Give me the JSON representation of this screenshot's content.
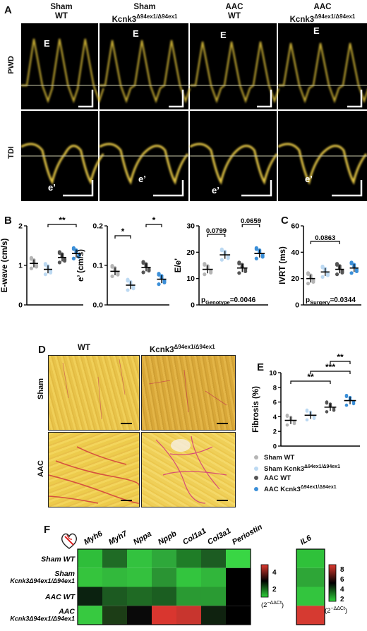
{
  "panelA": {
    "letter": "A",
    "columns": [
      {
        "line1": "Sham",
        "line2": "WT",
        "sup": ""
      },
      {
        "line1": "Sham",
        "line2": "Kcnk3",
        "sup": "Δ94ex1/Δ94ex1"
      },
      {
        "line1": "AAC",
        "line2": "WT",
        "sup": ""
      },
      {
        "line1": "AAC",
        "line2": "Kcnk3",
        "sup": "Δ94ex1/Δ94ex1"
      }
    ],
    "rows": [
      "PWD",
      "TDI"
    ],
    "pwd_marker": "E",
    "tdi_marker": "e’"
  },
  "panelB": {
    "letter": "B",
    "charts": [
      {
        "ylabel": "E-wave (cm/s)",
        "ylim": [
          0,
          2
        ],
        "yticks": [
          "0",
          "1",
          "2"
        ],
        "means": [
          1.05,
          0.9,
          1.2,
          1.3
        ],
        "sig": [
          {
            "from": 2,
            "to": 4,
            "label": "**"
          }
        ]
      },
      {
        "ylabel": "e’ (cm/s)",
        "ylim": [
          0,
          0.2
        ],
        "yticks": [
          "0.0",
          "0.1",
          "0.2"
        ],
        "means": [
          0.085,
          0.05,
          0.095,
          0.065
        ],
        "sig": [
          {
            "from": 1,
            "to": 2,
            "label": "*"
          },
          {
            "from": 3,
            "to": 4,
            "label": "*"
          }
        ]
      },
      {
        "ylabel": "E/e’",
        "ylim": [
          0,
          30
        ],
        "yticks": [
          "0",
          "10",
          "20",
          "30"
        ],
        "means": [
          13.5,
          19,
          14,
          19.5
        ],
        "sig": [
          {
            "from": 1,
            "to": 2,
            "label": "0.0799"
          },
          {
            "from": 3,
            "to": 4,
            "label": "0.0659"
          }
        ],
        "p_text_main": "p",
        "p_text_sub": "Genotype",
        "p_text_val": "=0.0046"
      }
    ]
  },
  "panelC": {
    "letter": "C",
    "ylabel": "IVRT (ms)",
    "ylim": [
      0,
      60
    ],
    "yticks": [
      "0",
      "20",
      "40",
      "60"
    ],
    "means": [
      20,
      25,
      27,
      28
    ],
    "sig": [
      {
        "from": 1,
        "to": 3,
        "label": "0.0863"
      }
    ],
    "p_text_main": "p",
    "p_text_sub": "Surgery",
    "p_text_val": "=0.0344"
  },
  "panelD": {
    "letter": "D",
    "col_wt": "WT",
    "col_ko": "Kcnk3",
    "col_ko_sup": "Δ94ex1/Δ94ex1",
    "row_sham": "Sham",
    "row_aac": "AAC"
  },
  "panelE": {
    "letter": "E",
    "ylabel": "Fibrosis (%)",
    "ylim": [
      0,
      10
    ],
    "yticks": [
      "0",
      "2",
      "4",
      "6",
      "8",
      "10"
    ],
    "means": [
      3.5,
      4.2,
      5.3,
      6.2
    ],
    "sig": [
      {
        "from": 1,
        "to": 3,
        "label": "**"
      },
      {
        "from": 2,
        "to": 4,
        "label": "***"
      },
      {
        "from": 3,
        "to": 4,
        "label": "**"
      }
    ],
    "legend": [
      {
        "text": "Sham WT",
        "sup": "",
        "color": "#b5b5b5"
      },
      {
        "text": "Sham Kcnk3",
        "sup": "Δ94ex1/Δ94ex1",
        "color": "#bcd9f2"
      },
      {
        "text": "AAC WT",
        "sup": "",
        "color": "#555555"
      },
      {
        "text": "AAC Kcnk3",
        "sup": "Δ94ex1/Δ94ex1",
        "color": "#3b8fd8"
      }
    ]
  },
  "panelF": {
    "letter": "F",
    "genes": [
      "Myh6",
      "Myh7",
      "Nppa",
      "Nppb",
      "Col1a1",
      "Col3a1",
      "Periostin"
    ],
    "gene2": [
      "IL6"
    ],
    "rows": [
      {
        "main": "Sham WT",
        "sub": ""
      },
      {
        "main": "Sham",
        "sub": "Kcnk3Δ94ex1/Δ94ex1"
      },
      {
        "main": "AAC WT",
        "sub": ""
      },
      {
        "main": "AAC",
        "sub": "Kcnk3Δ94ex1/Δ94ex1"
      }
    ],
    "heat": [
      [
        "#2fbe3a",
        "#1f6b25",
        "#33c23f",
        "#2ea83a",
        "#1f7d27",
        "#1c5c22",
        "#39d644"
      ],
      [
        "#35c43d",
        "#32b93c",
        "#34c13e",
        "#2a9433",
        "#33c53e",
        "#31b63b",
        "#000000"
      ],
      [
        "#0b2210",
        "#1c5a21",
        "#1f6a24",
        "#1b5e21",
        "#2a9a33",
        "#2a9b33",
        "#000000"
      ],
      [
        "#37c940",
        "#1c3d16",
        "#090909",
        "#d9362f",
        "#c8352e",
        "#0f220f",
        "#000000"
      ]
    ],
    "heat2": [
      "#2fc13a",
      "#2ea637",
      "#33c53e",
      "#d63a31"
    ],
    "scale1_ticks": [
      "4",
      "2"
    ],
    "scale1_label": "(2",
    "scale1_sup": "−ΔΔCt",
    "scale1_close": ")",
    "scale2_ticks": [
      "8",
      "6",
      "4",
      "2"
    ],
    "scale2_label": "(2",
    "scale2_sup": "−ΔΔCt",
    "scale2_close": ")"
  }
}
